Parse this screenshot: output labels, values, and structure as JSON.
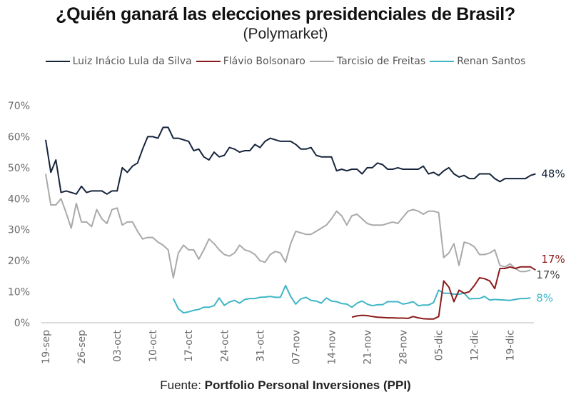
{
  "chart_data": {
    "type": "line",
    "title": "¿Quién ganará las elecciones presidenciales de Brasil?",
    "subtitle": "(Polymarket)",
    "source_prefix": "Fuente: ",
    "source_name": "Portfolio Personal Inversiones (PPI)",
    "xlabel": "",
    "ylabel": "",
    "ylim": [
      0,
      70
    ],
    "yticks": [
      0,
      10,
      20,
      30,
      40,
      50,
      60,
      70
    ],
    "ytick_labels": [
      "0%",
      "10%",
      "20%",
      "30%",
      "40%",
      "50%",
      "60%",
      "70%"
    ],
    "x_start_label": "19-sep",
    "x_day_range": [
      0,
      95
    ],
    "xticks": [
      0,
      7,
      14,
      21,
      28,
      35,
      42,
      49,
      56,
      63,
      70,
      77,
      84,
      91
    ],
    "xtick_labels": [
      "19-sep",
      "26-sep",
      "03-oct",
      "10-oct",
      "17-oct",
      "24-oct",
      "31-oct",
      "07-nov",
      "14-nov",
      "21-nov",
      "28-nov",
      "05-dic",
      "12-dic",
      "19-dic"
    ],
    "grid": false,
    "legend_position": "top",
    "series": [
      {
        "name": "Luiz Inácio Lula da Silva",
        "color": "#15243b",
        "end_label": "48%",
        "start_day": 0,
        "values": [
          59,
          48.5,
          52.5,
          42,
          42.5,
          42,
          41.5,
          44,
          42,
          42.5,
          42.5,
          42.5,
          41.5,
          42.5,
          42.5,
          50,
          48.5,
          50.5,
          51.5,
          56,
          60,
          60,
          59.5,
          63,
          63,
          59.5,
          59.5,
          59,
          58.5,
          55.5,
          56,
          53.5,
          52.5,
          55,
          53.5,
          54,
          56.5,
          56,
          55,
          55.5,
          55.5,
          57.5,
          56.5,
          58.5,
          59.5,
          59,
          58.5,
          58.5,
          58.5,
          57.5,
          56,
          56,
          56.5,
          54,
          53.5,
          53.5,
          53.5,
          49,
          49.5,
          49,
          49.5,
          49.5,
          48,
          50,
          50,
          51.5,
          51,
          49.5,
          49.5,
          50,
          49.5,
          49.5,
          49.5,
          49.5,
          50.5,
          48,
          48.5,
          47.5,
          49,
          50,
          48,
          47,
          47.5,
          46.5,
          46.5,
          48,
          48,
          48,
          46.5,
          45.5,
          46.5,
          46.5,
          46.5,
          46.5,
          46.5,
          47.5,
          48
        ]
      },
      {
        "name": "Flávio Bolsonaro",
        "color": "#8b1a1a",
        "end_label": "17%",
        "start_day": 60,
        "values": [
          1.8,
          2.2,
          2.4,
          2.3,
          2,
          1.8,
          1.7,
          1.6,
          1.6,
          1.5,
          1.5,
          1.4,
          2.0,
          1.6,
          1.3,
          1.2,
          1.2,
          2.0,
          13.5,
          11.5,
          6.8,
          10.5,
          9.5,
          10,
          12,
          14.5,
          14.2,
          13.5,
          11,
          17.5,
          17.5,
          18,
          17.5,
          18,
          18,
          18,
          17
        ]
      },
      {
        "name": "Tarcisio de Freitas",
        "color": "#a9a9a9",
        "end_label": "17%",
        "start_day": 0,
        "values": [
          48,
          38,
          38,
          40,
          35.5,
          30.5,
          38.5,
          32.5,
          32.5,
          31,
          36.5,
          33.5,
          32,
          36.5,
          37,
          31.5,
          32.5,
          32.5,
          29.5,
          27,
          27.5,
          27.5,
          26,
          25,
          23.5,
          14.5,
          22.5,
          25,
          23.5,
          23.5,
          20.5,
          23.5,
          27,
          25.5,
          23.5,
          22,
          21.5,
          22.5,
          25,
          23.5,
          23,
          22,
          20,
          19.5,
          22,
          23,
          22.5,
          19.5,
          25.5,
          29.5,
          29,
          28.5,
          28.5,
          29.5,
          30.5,
          31.5,
          33.5,
          36,
          34.5,
          31.5,
          34.5,
          35,
          33.5,
          32,
          31.5,
          31.5,
          31.5,
          32,
          32.5,
          32,
          34,
          36,
          36.5,
          36,
          35,
          36,
          36,
          35.5,
          21,
          22.5,
          25.5,
          18.5,
          26,
          25.5,
          24.5,
          22,
          22,
          22.5,
          23.5,
          18.5,
          18,
          19,
          17.5,
          16.5,
          16.5,
          17
        ]
      },
      {
        "name": "Renan Santos",
        "color": "#3fb6c6",
        "end_label": "8%",
        "start_day": 25,
        "values": [
          7.8,
          4.5,
          3.2,
          3.5,
          4,
          4.3,
          5,
          5,
          5.5,
          8,
          5.6,
          6.7,
          7.2,
          6.3,
          7.5,
          7.8,
          7.8,
          8.2,
          8.3,
          8.5,
          8.2,
          8.2,
          12,
          8.5,
          6,
          7.7,
          8.2,
          7.2,
          7,
          6.3,
          8,
          7,
          6.8,
          6.2,
          6,
          5,
          6.3,
          7,
          6,
          5.5,
          5.8,
          5.8,
          6.8,
          6.8,
          6.8,
          6,
          6.3,
          6.8,
          5.5,
          5.7,
          5.7,
          6.5,
          10.5,
          9.5,
          9.5,
          9.2,
          9.2,
          9.5,
          7.7,
          7.8,
          7.8,
          8.5,
          7.3,
          7.5,
          7.4,
          7.3,
          7.2,
          7.5,
          7.8,
          7.8,
          8
        ]
      }
    ]
  }
}
